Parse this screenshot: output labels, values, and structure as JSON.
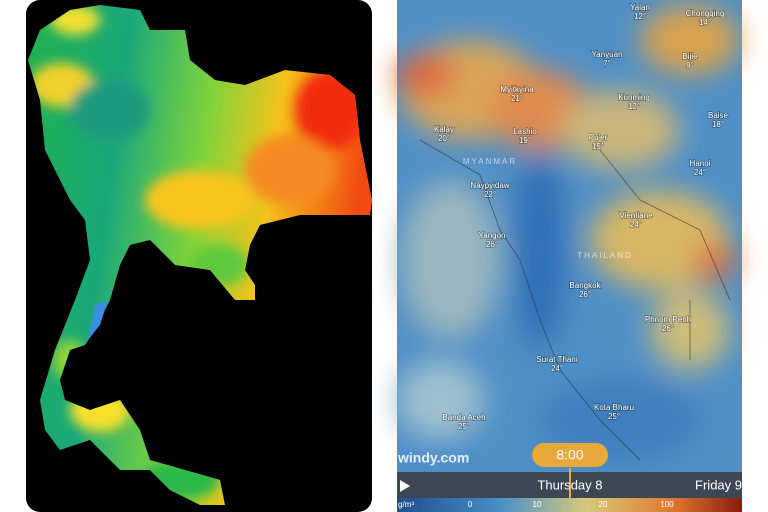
{
  "right_map": {
    "places": [
      {
        "name": "Yalan",
        "temp": "12°"
      },
      {
        "name": "Chongqing",
        "temp": "14°"
      },
      {
        "name": "Yanyuan",
        "temp": "7°"
      },
      {
        "name": "Bijie",
        "temp": "9°"
      },
      {
        "name": "Myitkyina",
        "temp": "21°"
      },
      {
        "name": "Kunming",
        "temp": "12°"
      },
      {
        "name": "Kalay",
        "temp": "20°"
      },
      {
        "name": "Lashio",
        "temp": "19°"
      },
      {
        "name": "Pu'er",
        "temp": "15°"
      },
      {
        "name": "Baise",
        "temp": "18°"
      },
      {
        "name": "Naypyidaw",
        "temp": "22°"
      },
      {
        "name": "Hanoi",
        "temp": "24°"
      },
      {
        "name": "Vientiane",
        "temp": "24°"
      },
      {
        "name": "Yangon",
        "temp": "26°"
      },
      {
        "name": "Bangkok",
        "temp": "26°"
      },
      {
        "name": "Phnom Penh",
        "temp": "26°"
      },
      {
        "name": "Surat Thani",
        "temp": "24°"
      },
      {
        "name": "Kota Bharu",
        "temp": "25°"
      },
      {
        "name": "Banda Aceh",
        "temp": "25°"
      }
    ],
    "countries": [
      "MYANMAR",
      "THAILAND"
    ],
    "brand": "windy.com",
    "time": "8:00",
    "days": [
      "Thursday 8",
      "Friday 9"
    ],
    "legend": {
      "unit": "g/m³",
      "ticks": [
        "0",
        "10",
        "20",
        "100"
      ]
    }
  }
}
